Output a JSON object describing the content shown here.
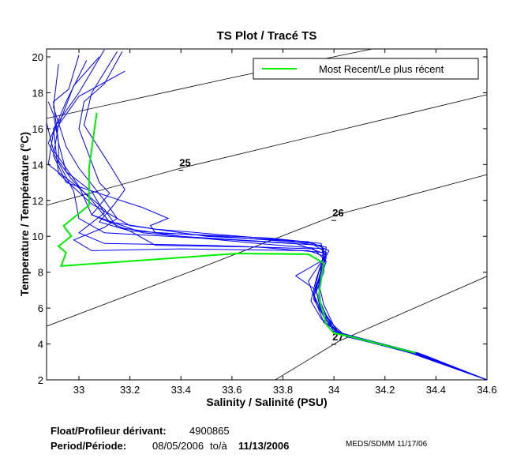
{
  "chart_data": {
    "type": "line",
    "title": "TS Plot / Tracé TS",
    "xlabel": "Salinity / Salinité (PSU)",
    "ylabel": "Temperature / Température (°C)",
    "xlim": [
      32.87,
      34.6
    ],
    "ylim": [
      2,
      20.4
    ],
    "xticks": [
      33,
      33.2,
      33.4,
      33.6,
      33.8,
      34,
      34.2,
      34.4,
      34.6
    ],
    "xtick_labels": [
      "33",
      "33.2",
      "33.4",
      "33.6",
      "33.8",
      "34",
      "34.2",
      "34.4",
      "34.6"
    ],
    "yticks": [
      2,
      4,
      6,
      8,
      10,
      12,
      14,
      16,
      18,
      20
    ],
    "ytick_labels": [
      "2",
      "4",
      "6",
      "8",
      "10",
      "12",
      "14",
      "16",
      "18",
      "20"
    ],
    "grid": false,
    "legend": {
      "position": "top-right",
      "entries": [
        {
          "label": "Most Recent/Le plus récent",
          "color": "#00ee00"
        }
      ]
    },
    "density_contours": [
      {
        "label": "",
        "points": [
          [
            32.873,
            16.57
          ],
          [
            33.62,
            18.9
          ],
          [
            34.15,
            20.44
          ]
        ]
      },
      {
        "label": "25",
        "label_at": [
          33.4,
          13.9
        ],
        "points": [
          [
            32.873,
            11.73
          ],
          [
            33.4,
            13.8
          ],
          [
            34.6,
            17.89
          ]
        ]
      },
      {
        "label": "26",
        "label_at": [
          34.0,
          11.1
        ],
        "points": [
          [
            32.873,
            4.99
          ],
          [
            33.45,
            8.1
          ],
          [
            34.01,
            11.2
          ],
          [
            34.6,
            13.44
          ]
        ]
      },
      {
        "label": "27",
        "label_at": [
          34.0,
          4.2
        ],
        "points": [
          [
            33.77,
            2.0
          ],
          [
            34.02,
            4.16
          ],
          [
            34.6,
            7.77
          ]
        ]
      }
    ],
    "series": [
      {
        "color": "#0000ff",
        "points": [
          [
            33.1,
            20.4
          ],
          [
            33.0,
            18
          ],
          [
            32.9,
            16
          ],
          [
            32.92,
            13.5
          ],
          [
            33.05,
            11.8
          ],
          [
            33.2,
            10.6
          ],
          [
            33.5,
            10.0
          ],
          [
            33.9,
            9.7
          ],
          [
            33.97,
            9.1
          ],
          [
            33.93,
            7
          ],
          [
            33.95,
            5.8
          ],
          [
            34.0,
            4.7
          ],
          [
            34.3,
            3.6
          ],
          [
            34.6,
            2.0
          ]
        ]
      },
      {
        "color": "#0000ff",
        "points": [
          [
            33.03,
            19.8
          ],
          [
            32.95,
            17.5
          ],
          [
            32.88,
            15.2
          ],
          [
            32.98,
            12.5
          ],
          [
            33.0,
            11
          ],
          [
            33.1,
            10.2
          ],
          [
            33.6,
            9.8
          ],
          [
            33.95,
            9.5
          ],
          [
            33.97,
            8.8
          ],
          [
            33.92,
            6.8
          ],
          [
            33.96,
            5.5
          ],
          [
            34.02,
            4.6
          ],
          [
            34.35,
            3.4
          ],
          [
            34.6,
            2.0
          ]
        ]
      },
      {
        "color": "#0000ff",
        "points": [
          [
            33.17,
            20.3
          ],
          [
            33.1,
            18.5
          ],
          [
            33.02,
            17.5
          ],
          [
            33.0,
            16
          ],
          [
            33.08,
            13
          ],
          [
            33.12,
            12.4
          ],
          [
            33.05,
            11.2
          ],
          [
            33.25,
            10.2
          ],
          [
            33.7,
            9.6
          ],
          [
            33.96,
            9.3
          ],
          [
            33.95,
            8.2
          ],
          [
            33.92,
            6.5
          ],
          [
            33.97,
            5.3
          ],
          [
            34.03,
            4.5
          ],
          [
            34.3,
            3.5
          ],
          [
            34.6,
            2.0
          ]
        ]
      },
      {
        "color": "#0000ff",
        "points": [
          [
            33.0,
            20.1
          ],
          [
            32.96,
            18.2
          ],
          [
            32.9,
            17.5
          ],
          [
            32.92,
            15.2
          ],
          [
            32.92,
            14.2
          ],
          [
            32.97,
            13.2
          ],
          [
            33.05,
            12
          ],
          [
            33.12,
            10.8
          ],
          [
            33.3,
            10.4
          ],
          [
            33.8,
            9.8
          ],
          [
            33.97,
            9.4
          ],
          [
            33.96,
            8.4
          ],
          [
            33.94,
            7.2
          ],
          [
            33.95,
            6
          ],
          [
            34.01,
            4.6
          ],
          [
            34.32,
            3.5
          ],
          [
            34.6,
            2.0
          ]
        ]
      },
      {
        "color": "#0000ff",
        "points": [
          [
            33.18,
            19.2
          ],
          [
            33.0,
            17.8
          ],
          [
            32.9,
            15.8
          ],
          [
            32.88,
            14
          ],
          [
            33.0,
            12.7
          ],
          [
            33.1,
            11.5
          ],
          [
            33.15,
            10.5
          ],
          [
            33.4,
            10.0
          ],
          [
            33.85,
            9.6
          ],
          [
            33.97,
            9.0
          ],
          [
            33.9,
            7.5
          ],
          [
            33.93,
            6.3
          ],
          [
            33.96,
            5.2
          ],
          [
            34.04,
            4.5
          ],
          [
            34.33,
            3.4
          ],
          [
            34.6,
            2.0
          ]
        ]
      },
      {
        "color": "#0000ff",
        "points": [
          [
            32.87,
            18.3
          ],
          [
            32.87,
            16.5
          ],
          [
            32.9,
            14.8
          ],
          [
            33.0,
            12.8
          ],
          [
            33.05,
            11.2
          ],
          [
            33.2,
            10.3
          ],
          [
            33.3,
            9.5
          ],
          [
            33.7,
            9.4
          ],
          [
            33.96,
            9.1
          ],
          [
            33.96,
            8.0
          ],
          [
            33.93,
            6.9
          ],
          [
            33.97,
            5.6
          ],
          [
            34.02,
            4.6
          ],
          [
            34.3,
            3.5
          ],
          [
            34.6,
            2.0
          ]
        ]
      },
      {
        "color": "#0000ff",
        "points": [
          [
            32.88,
            17.5
          ],
          [
            32.9,
            16.8
          ],
          [
            32.92,
            15.2
          ],
          [
            32.95,
            13.6
          ],
          [
            33.05,
            12.5
          ],
          [
            33.1,
            11.3
          ],
          [
            33.0,
            10.2
          ],
          [
            33.1,
            9.6
          ],
          [
            33.5,
            9.5
          ],
          [
            33.92,
            9.3
          ],
          [
            33.97,
            8.6
          ],
          [
            33.94,
            7.4
          ],
          [
            33.96,
            6.2
          ],
          [
            34.0,
            5.0
          ],
          [
            34.05,
            4.4
          ],
          [
            34.35,
            3.4
          ],
          [
            34.6,
            2.0
          ]
        ]
      },
      {
        "color": "#0000ff",
        "points": [
          [
            33.15,
            20.3
          ],
          [
            33.05,
            18.0
          ],
          [
            33.02,
            16.2
          ],
          [
            33.12,
            14.0
          ],
          [
            33.18,
            12.6
          ],
          [
            33.14,
            11.8
          ],
          [
            33.08,
            10.8
          ],
          [
            33.2,
            10.3
          ],
          [
            33.55,
            10.0
          ],
          [
            33.92,
            9.6
          ],
          [
            33.98,
            9.2
          ],
          [
            33.94,
            8.0
          ],
          [
            33.92,
            6.7
          ],
          [
            33.96,
            5.6
          ],
          [
            34.03,
            4.6
          ],
          [
            34.32,
            3.5
          ],
          [
            34.6,
            2.0
          ]
        ]
      },
      {
        "color": "#0000ff",
        "points": [
          [
            33.08,
            20.0
          ],
          [
            32.98,
            18.4
          ],
          [
            32.92,
            16.2
          ],
          [
            32.9,
            14.5
          ],
          [
            32.95,
            13.0
          ],
          [
            33.12,
            12.2
          ],
          [
            33.25,
            11.6
          ],
          [
            33.35,
            11.0
          ],
          [
            33.28,
            10.6
          ],
          [
            33.3,
            10.2
          ],
          [
            33.75,
            9.9
          ],
          [
            33.95,
            9.6
          ],
          [
            33.96,
            8.7
          ],
          [
            33.85,
            7.8
          ],
          [
            33.93,
            7.0
          ],
          [
            33.95,
            5.8
          ],
          [
            34.0,
            4.7
          ],
          [
            34.3,
            3.6
          ],
          [
            34.6,
            2.0
          ]
        ]
      },
      {
        "color": "#0000ff",
        "points": [
          [
            32.92,
            19.6
          ],
          [
            32.9,
            17.2
          ],
          [
            32.95,
            15.0
          ],
          [
            33.0,
            13.8
          ],
          [
            33.1,
            12.0
          ],
          [
            33.15,
            11.0
          ],
          [
            33.1,
            10.5
          ],
          [
            32.98,
            9.8
          ],
          [
            33.05,
            9.2
          ],
          [
            33.4,
            9.3
          ],
          [
            33.9,
            9.2
          ],
          [
            33.96,
            8.9
          ],
          [
            33.93,
            7.6
          ],
          [
            33.91,
            6.4
          ],
          [
            33.95,
            5.4
          ],
          [
            34.03,
            4.5
          ],
          [
            34.33,
            3.5
          ],
          [
            34.6,
            2.0
          ]
        ]
      }
    ],
    "most_recent": {
      "color": "#00ee00",
      "name": "Most Recent/Le plus récent",
      "points": [
        [
          33.07,
          16.88
        ],
        [
          33.04,
          13.84
        ],
        [
          33.04,
          11.73
        ],
        [
          32.94,
          10.58
        ],
        [
          32.97,
          10.01
        ],
        [
          32.92,
          9.44
        ],
        [
          32.95,
          9.09
        ],
        [
          32.93,
          8.34
        ],
        [
          33.62,
          9.04
        ],
        [
          33.9,
          9.0
        ],
        [
          33.96,
          8.5
        ],
        [
          33.94,
          6.67
        ],
        [
          33.97,
          5.1
        ],
        [
          34.0,
          4.6
        ],
        [
          34.05,
          4.46
        ],
        [
          34.18,
          4.0
        ],
        [
          34.32,
          3.5
        ]
      ]
    }
  },
  "footer": {
    "float_label": "Float/Profileur dérivant:",
    "float_id": "4900865",
    "period_label": "Period/Période:",
    "period_start": "08/05/2006",
    "period_to": "to/à",
    "period_end": "11/13/2006",
    "credit": "MEDS/SDMM  11/17/06"
  }
}
